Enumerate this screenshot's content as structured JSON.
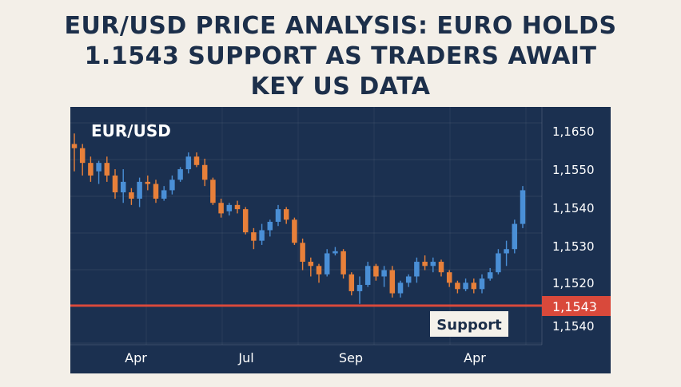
{
  "headline": {
    "line1": "EUR/USD PRICE ANALYSIS: EURO HOLDS",
    "line2": "1.1543 SUPPORT AS TRADERS AWAIT",
    "line3": "KEY US DATA"
  },
  "colors": {
    "background": "#f3efe8",
    "panel": "#1b3050",
    "headline": "#1c2f4a",
    "bull": "#4a8fd6",
    "bear": "#e8803a",
    "support_line": "#d9493b",
    "text_light": "#ffffff"
  },
  "chart_data": {
    "type": "candlestick",
    "title": "EUR/USD",
    "x_tick_labels": [
      "Apr",
      "Jul",
      "Sep",
      "Apr"
    ],
    "y_tick_labels": [
      "1,1650",
      "1,1550",
      "1,1540",
      "1,1530",
      "1,1520",
      "1,1540"
    ],
    "support_level_label": "1,1543",
    "support_annotation": "Support",
    "grid": true,
    "candles": [
      {
        "o": 68.0,
        "h": 73.0,
        "l": 55.0,
        "c": 66.0
      },
      {
        "o": 66.0,
        "h": 68.0,
        "l": 53.0,
        "c": 59.0
      },
      {
        "o": 59.0,
        "h": 62.0,
        "l": 50.0,
        "c": 53.0
      },
      {
        "o": 55.0,
        "h": 60.0,
        "l": 49.0,
        "c": 59.0
      },
      {
        "o": 59.0,
        "h": 62.0,
        "l": 50.0,
        "c": 53.0
      },
      {
        "o": 53.0,
        "h": 56.0,
        "l": 42.0,
        "c": 45.0
      },
      {
        "o": 45.0,
        "h": 56.0,
        "l": 40.0,
        "c": 50.0
      },
      {
        "o": 45.0,
        "h": 47.0,
        "l": 39.0,
        "c": 42.0
      },
      {
        "o": 42.0,
        "h": 52.0,
        "l": 38.0,
        "c": 50.0
      },
      {
        "o": 50.0,
        "h": 53.0,
        "l": 46.0,
        "c": 49.0
      },
      {
        "o": 49.0,
        "h": 51.0,
        "l": 40.0,
        "c": 42.0
      },
      {
        "o": 42.0,
        "h": 48.0,
        "l": 41.0,
        "c": 46.0
      },
      {
        "o": 46.0,
        "h": 53.0,
        "l": 44.0,
        "c": 51.0
      },
      {
        "o": 51.0,
        "h": 57.0,
        "l": 50.0,
        "c": 56.0
      },
      {
        "o": 56.0,
        "h": 64.0,
        "l": 54.0,
        "c": 62.0
      },
      {
        "o": 62.0,
        "h": 64.0,
        "l": 57.0,
        "c": 58.0
      },
      {
        "o": 58.0,
        "h": 61.0,
        "l": 48.0,
        "c": 51.0
      },
      {
        "o": 51.0,
        "h": 52.0,
        "l": 39.0,
        "c": 40.0
      },
      {
        "o": 40.0,
        "h": 42.0,
        "l": 33.0,
        "c": 35.0
      },
      {
        "o": 36.0,
        "h": 40.0,
        "l": 34.0,
        "c": 39.0
      },
      {
        "o": 39.0,
        "h": 41.0,
        "l": 35.0,
        "c": 37.0
      },
      {
        "o": 37.0,
        "h": 38.0,
        "l": 25.0,
        "c": 26.0
      },
      {
        "o": 26.0,
        "h": 28.0,
        "l": 18.0,
        "c": 22.0
      },
      {
        "o": 22.0,
        "h": 30.0,
        "l": 20.0,
        "c": 27.0
      },
      {
        "o": 27.0,
        "h": 32.0,
        "l": 24.0,
        "c": 31.0
      },
      {
        "o": 31.0,
        "h": 39.0,
        "l": 29.0,
        "c": 37.0
      },
      {
        "o": 37.0,
        "h": 38.0,
        "l": 30.0,
        "c": 32.0
      },
      {
        "o": 32.0,
        "h": 33.0,
        "l": 20.0,
        "c": 21.0
      },
      {
        "o": 21.0,
        "h": 23.0,
        "l": 8.0,
        "c": 12.0
      },
      {
        "o": 12.0,
        "h": 14.0,
        "l": 5.0,
        "c": 10.0
      },
      {
        "o": 10.0,
        "h": 11.0,
        "l": 2.0,
        "c": 6.0
      },
      {
        "o": 6.0,
        "h": 18.0,
        "l": 5.0,
        "c": 16.0
      },
      {
        "o": 16.0,
        "h": 19.0,
        "l": 15.0,
        "c": 17.0
      },
      {
        "o": 17.0,
        "h": 18.0,
        "l": 4.0,
        "c": 6.0
      },
      {
        "o": 6.0,
        "h": 7.0,
        "l": -4.0,
        "c": -2.0
      },
      {
        "o": -2.0,
        "h": 5.0,
        "l": -8.0,
        "c": 1.0
      },
      {
        "o": 1.0,
        "h": 12.0,
        "l": 0.0,
        "c": 10.0
      },
      {
        "o": 10.0,
        "h": 11.0,
        "l": 3.0,
        "c": 5.0
      },
      {
        "o": 5.0,
        "h": 10.0,
        "l": 0.0,
        "c": 8.0
      },
      {
        "o": 8.0,
        "h": 10.0,
        "l": -5.0,
        "c": -3.0
      },
      {
        "o": -3.0,
        "h": 3.0,
        "l": -5.0,
        "c": 2.0
      },
      {
        "o": 2.0,
        "h": 6.0,
        "l": 0.0,
        "c": 5.0
      },
      {
        "o": 5.0,
        "h": 14.0,
        "l": 2.0,
        "c": 12.0
      },
      {
        "o": 12.0,
        "h": 15.0,
        "l": 8.0,
        "c": 10.0
      },
      {
        "o": 10.0,
        "h": 14.0,
        "l": 7.0,
        "c": 12.0
      },
      {
        "o": 12.0,
        "h": 13.0,
        "l": 5.0,
        "c": 7.0
      },
      {
        "o": 7.0,
        "h": 8.0,
        "l": 0.0,
        "c": 2.0
      },
      {
        "o": 2.0,
        "h": 3.0,
        "l": -3.0,
        "c": -1.0
      },
      {
        "o": -1.0,
        "h": 4.0,
        "l": -2.0,
        "c": 2.0
      },
      {
        "o": 2.0,
        "h": 4.0,
        "l": -3.0,
        "c": -1.0
      },
      {
        "o": -1.0,
        "h": 6.0,
        "l": -3.0,
        "c": 4.0
      },
      {
        "o": 4.0,
        "h": 9.0,
        "l": 3.0,
        "c": 7.0
      },
      {
        "o": 7.0,
        "h": 18.0,
        "l": 6.0,
        "c": 16.0
      },
      {
        "o": 16.0,
        "h": 22.0,
        "l": 10.0,
        "c": 18.0
      },
      {
        "o": 18.0,
        "h": 32.0,
        "l": 16.0,
        "c": 30.0
      },
      {
        "o": 30.0,
        "h": 48.0,
        "l": 28.0,
        "c": 46.0
      }
    ]
  }
}
